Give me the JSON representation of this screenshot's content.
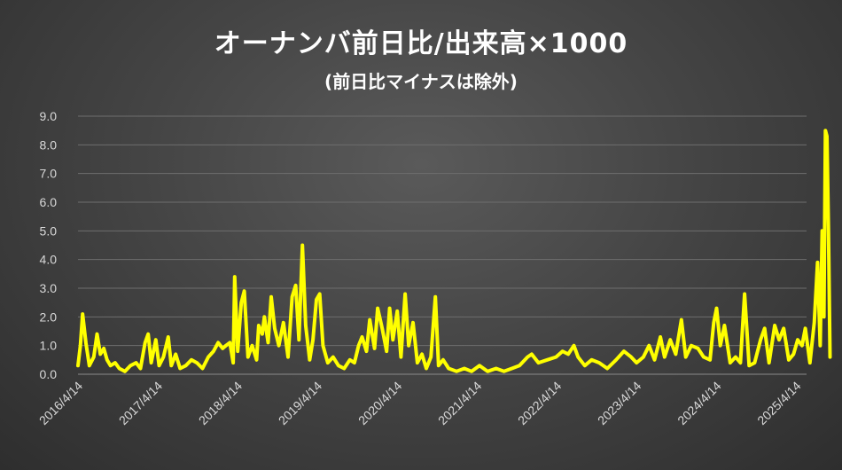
{
  "chart_data": {
    "type": "line",
    "title": "オーナンバ前日比/出来高×1000",
    "subtitle": "(前日比マイナスは除外)",
    "xlabel": "",
    "ylabel": "",
    "ylim": [
      0,
      9
    ],
    "yticks": [
      "0.0",
      "1.0",
      "2.0",
      "3.0",
      "4.0",
      "5.0",
      "6.0",
      "7.0",
      "8.0",
      "9.0"
    ],
    "xticks": [
      "2016/4/14",
      "2017/4/14",
      "2018/4/14",
      "2019/4/14",
      "2020/4/14",
      "2021/4/14",
      "2022/4/14",
      "2023/4/14",
      "2024/4/14",
      "2025/4/14"
    ],
    "grid": true,
    "series": [
      {
        "color": "#ffff00",
        "points": [
          [
            "2016-04-14",
            0.3
          ],
          [
            "2016-04-25",
            1.0
          ],
          [
            "2016-05-05",
            2.1
          ],
          [
            "2016-05-20",
            1.1
          ],
          [
            "2016-06-05",
            0.3
          ],
          [
            "2016-06-25",
            0.6
          ],
          [
            "2016-07-10",
            1.4
          ],
          [
            "2016-07-25",
            0.7
          ],
          [
            "2016-08-10",
            0.9
          ],
          [
            "2016-08-25",
            0.5
          ],
          [
            "2016-09-10",
            0.3
          ],
          [
            "2016-10-01",
            0.4
          ],
          [
            "2016-10-20",
            0.2
          ],
          [
            "2016-11-15",
            0.1
          ],
          [
            "2016-12-10",
            0.3
          ],
          [
            "2017-01-05",
            0.4
          ],
          [
            "2017-01-25",
            0.2
          ],
          [
            "2017-02-15",
            1.1
          ],
          [
            "2017-03-01",
            1.4
          ],
          [
            "2017-03-15",
            0.4
          ],
          [
            "2017-04-05",
            1.2
          ],
          [
            "2017-04-20",
            0.3
          ],
          [
            "2017-05-10",
            0.6
          ],
          [
            "2017-06-01",
            1.3
          ],
          [
            "2017-06-15",
            0.3
          ],
          [
            "2017-07-05",
            0.7
          ],
          [
            "2017-07-25",
            0.2
          ],
          [
            "2017-08-20",
            0.3
          ],
          [
            "2017-09-15",
            0.5
          ],
          [
            "2017-10-10",
            0.4
          ],
          [
            "2017-11-05",
            0.2
          ],
          [
            "2017-12-01",
            0.6
          ],
          [
            "2017-12-25",
            0.8
          ],
          [
            "2018-01-15",
            1.1
          ],
          [
            "2018-02-05",
            0.9
          ],
          [
            "2018-02-20",
            1.0
          ],
          [
            "2018-03-10",
            1.1
          ],
          [
            "2018-03-25",
            0.4
          ],
          [
            "2018-04-01",
            3.4
          ],
          [
            "2018-04-15",
            0.8
          ],
          [
            "2018-05-01",
            2.5
          ],
          [
            "2018-05-15",
            2.9
          ],
          [
            "2018-06-01",
            0.6
          ],
          [
            "2018-06-20",
            1.0
          ],
          [
            "2018-07-10",
            0.5
          ],
          [
            "2018-07-20",
            1.7
          ],
          [
            "2018-08-05",
            1.4
          ],
          [
            "2018-08-15",
            2.0
          ],
          [
            "2018-09-01",
            1.1
          ],
          [
            "2018-09-15",
            2.7
          ],
          [
            "2018-10-01",
            1.6
          ],
          [
            "2018-10-20",
            1.0
          ],
          [
            "2018-11-10",
            1.8
          ],
          [
            "2018-12-01",
            0.6
          ],
          [
            "2018-12-20",
            2.7
          ],
          [
            "2019-01-05",
            3.1
          ],
          [
            "2019-01-20",
            1.2
          ],
          [
            "2019-02-05",
            4.5
          ],
          [
            "2019-02-20",
            1.7
          ],
          [
            "2019-03-10",
            0.5
          ],
          [
            "2019-03-25",
            1.2
          ],
          [
            "2019-04-10",
            2.6
          ],
          [
            "2019-04-25",
            2.8
          ],
          [
            "2019-05-10",
            1.0
          ],
          [
            "2019-06-01",
            0.4
          ],
          [
            "2019-06-25",
            0.6
          ],
          [
            "2019-07-20",
            0.3
          ],
          [
            "2019-08-15",
            0.2
          ],
          [
            "2019-09-10",
            0.5
          ],
          [
            "2019-10-01",
            0.4
          ],
          [
            "2019-10-20",
            1.0
          ],
          [
            "2019-11-05",
            1.3
          ],
          [
            "2019-11-25",
            0.8
          ],
          [
            "2019-12-10",
            1.9
          ],
          [
            "2020-01-01",
            0.9
          ],
          [
            "2020-01-15",
            2.3
          ],
          [
            "2020-02-05",
            1.6
          ],
          [
            "2020-02-25",
            0.8
          ],
          [
            "2020-03-10",
            2.3
          ],
          [
            "2020-03-25",
            1.2
          ],
          [
            "2020-04-14",
            2.2
          ],
          [
            "2020-05-01",
            0.6
          ],
          [
            "2020-05-20",
            2.8
          ],
          [
            "2020-06-05",
            1.0
          ],
          [
            "2020-06-25",
            1.8
          ],
          [
            "2020-07-15",
            0.4
          ],
          [
            "2020-08-05",
            0.7
          ],
          [
            "2020-08-25",
            0.2
          ],
          [
            "2020-09-15",
            0.6
          ],
          [
            "2020-10-05",
            2.7
          ],
          [
            "2020-10-20",
            0.3
          ],
          [
            "2020-11-10",
            0.5
          ],
          [
            "2020-12-05",
            0.2
          ],
          [
            "2021-01-10",
            0.1
          ],
          [
            "2021-02-15",
            0.2
          ],
          [
            "2021-03-20",
            0.1
          ],
          [
            "2021-04-25",
            0.3
          ],
          [
            "2021-06-01",
            0.1
          ],
          [
            "2021-07-10",
            0.2
          ],
          [
            "2021-08-15",
            0.1
          ],
          [
            "2021-09-20",
            0.2
          ],
          [
            "2021-10-25",
            0.3
          ],
          [
            "2021-12-01",
            0.6
          ],
          [
            "2021-12-20",
            0.7
          ],
          [
            "2022-01-20",
            0.4
          ],
          [
            "2022-03-01",
            0.5
          ],
          [
            "2022-04-10",
            0.6
          ],
          [
            "2022-05-10",
            0.8
          ],
          [
            "2022-06-05",
            0.7
          ],
          [
            "2022-07-01",
            1.0
          ],
          [
            "2022-07-20",
            0.6
          ],
          [
            "2022-08-20",
            0.3
          ],
          [
            "2022-09-20",
            0.5
          ],
          [
            "2022-10-25",
            0.4
          ],
          [
            "2022-12-01",
            0.2
          ],
          [
            "2023-01-10",
            0.5
          ],
          [
            "2023-02-15",
            0.8
          ],
          [
            "2023-03-20",
            0.6
          ],
          [
            "2023-04-14",
            0.4
          ],
          [
            "2023-05-15",
            0.6
          ],
          [
            "2023-06-10",
            1.0
          ],
          [
            "2023-07-05",
            0.5
          ],
          [
            "2023-08-01",
            1.3
          ],
          [
            "2023-08-20",
            0.6
          ],
          [
            "2023-09-15",
            1.2
          ],
          [
            "2023-10-10",
            0.7
          ],
          [
            "2023-11-05",
            1.9
          ],
          [
            "2023-11-25",
            0.6
          ],
          [
            "2023-12-20",
            1.0
          ],
          [
            "2024-01-20",
            0.9
          ],
          [
            "2024-02-15",
            0.6
          ],
          [
            "2024-03-15",
            0.5
          ],
          [
            "2024-04-01",
            1.8
          ],
          [
            "2024-04-14",
            2.3
          ],
          [
            "2024-05-01",
            1.0
          ],
          [
            "2024-05-20",
            1.7
          ],
          [
            "2024-06-15",
            0.4
          ],
          [
            "2024-07-10",
            0.6
          ],
          [
            "2024-08-01",
            0.4
          ],
          [
            "2024-08-20",
            2.8
          ],
          [
            "2024-09-10",
            0.3
          ],
          [
            "2024-10-05",
            0.4
          ],
          [
            "2024-11-01",
            1.2
          ],
          [
            "2024-11-20",
            1.6
          ],
          [
            "2024-12-10",
            0.4
          ],
          [
            "2025-01-05",
            1.7
          ],
          [
            "2025-01-25",
            1.2
          ],
          [
            "2025-02-15",
            1.6
          ],
          [
            "2025-03-10",
            0.5
          ],
          [
            "2025-04-01",
            0.7
          ],
          [
            "2025-04-20",
            1.2
          ],
          [
            "2025-05-10",
            1.0
          ],
          [
            "2025-05-25",
            1.6
          ],
          [
            "2025-06-15",
            0.4
          ],
          [
            "2025-07-05",
            1.8
          ],
          [
            "2025-07-20",
            3.9
          ],
          [
            "2025-08-01",
            1.0
          ],
          [
            "2025-08-10",
            5.0
          ],
          [
            "2025-08-18",
            2.0
          ],
          [
            "2025-08-25",
            8.5
          ],
          [
            "2025-09-01",
            8.3
          ],
          [
            "2025-09-08",
            5.1
          ],
          [
            "2025-09-15",
            0.6
          ]
        ]
      }
    ]
  }
}
